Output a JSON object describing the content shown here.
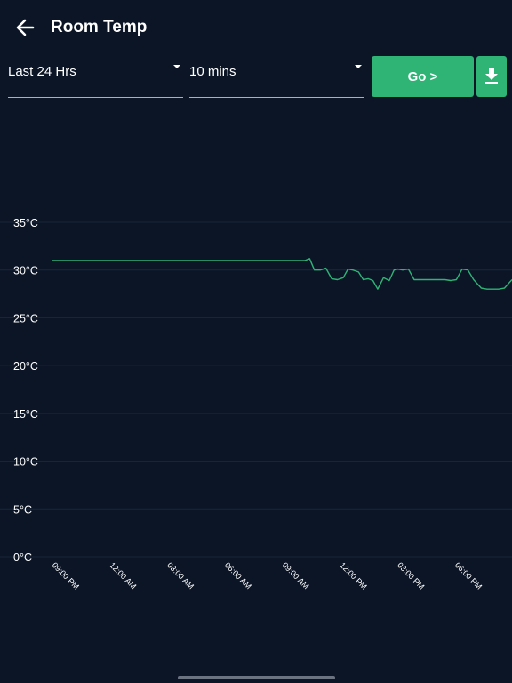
{
  "header": {
    "title": "Room Temp",
    "back_icon": "arrow-left-icon"
  },
  "controls": {
    "range_value": "Last 24 Hrs",
    "interval_value": "10 mins",
    "go_label": "Go >",
    "download_icon": "download-icon"
  },
  "colors": {
    "background": "#0b1526",
    "accent": "#2fb476",
    "line": "#2fb476",
    "grid": "#18283a"
  },
  "chart_data": {
    "type": "line",
    "title": "",
    "xlabel": "",
    "ylabel": "",
    "ylim": [
      0,
      35
    ],
    "y_ticks": [
      35,
      30,
      25,
      20,
      15,
      10,
      5,
      0
    ],
    "y_tick_labels": [
      "35°C",
      "30°C",
      "25°C",
      "20°C",
      "15°C",
      "10°C",
      "5°C",
      "0°C"
    ],
    "x_range": [
      0,
      24
    ],
    "x_ticks": [
      0,
      3,
      6,
      9,
      12,
      15,
      18,
      21
    ],
    "x_tick_labels": [
      "09:00 PM",
      "12:00 AM",
      "03:00 AM",
      "06:00 AM",
      "09:00 AM",
      "12:00 PM",
      "03:00 PM",
      "06:00 PM"
    ],
    "grid": true,
    "legend": "none",
    "series": [
      {
        "x": [
          0,
          13.2,
          13.45,
          13.7,
          14.0,
          14.3,
          14.6,
          14.9,
          15.2,
          15.45,
          15.7,
          16.0,
          16.25,
          16.5,
          16.75,
          17.0,
          17.3,
          17.6,
          17.85,
          18.05,
          18.3,
          18.6,
          18.9,
          19.1,
          19.4,
          19.7,
          20.0,
          20.5,
          20.8,
          21.1,
          21.4,
          21.7,
          22.0,
          22.4,
          22.7,
          23.0,
          23.3,
          23.6,
          24.0
        ],
        "y": [
          31,
          31,
          31.2,
          30,
          30,
          30.2,
          29.1,
          29,
          29.2,
          30.1,
          30,
          29.8,
          29,
          29.1,
          28.9,
          28,
          29.2,
          28.9,
          30,
          30.1,
          30,
          30.1,
          29,
          29,
          29,
          29,
          29,
          29,
          28.9,
          29,
          30.1,
          30,
          29,
          28.1,
          28,
          28,
          28,
          28.1,
          29
        ]
      }
    ]
  }
}
